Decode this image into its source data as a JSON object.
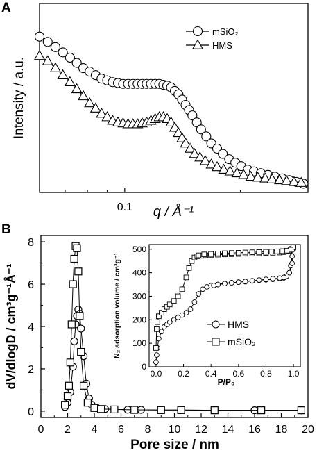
{
  "panels": {
    "a_label": "A",
    "b_label": "B"
  },
  "chart_data": [
    {
      "id": "A",
      "type": "line",
      "xscale": "log",
      "xlabel": "q / Å⁻¹",
      "ylabel": "Intensity / a.u.",
      "xlim": [
        0.06,
        0.3
      ],
      "ylim": [
        0,
        1
      ],
      "x_ticks": [
        0.1
      ],
      "x_tick_labels": [
        "0.1"
      ],
      "legend_position": "top-right",
      "series": [
        {
          "name": "mSiO₂",
          "marker": "circle",
          "x": [
            0.06,
            0.063,
            0.066,
            0.069,
            0.072,
            0.075,
            0.078,
            0.081,
            0.084,
            0.087,
            0.09,
            0.093,
            0.096,
            0.099,
            0.102,
            0.105,
            0.108,
            0.111,
            0.114,
            0.117,
            0.12,
            0.123,
            0.126,
            0.129,
            0.132,
            0.135,
            0.138,
            0.141,
            0.144,
            0.147,
            0.15,
            0.154,
            0.158,
            0.163,
            0.168,
            0.174,
            0.18,
            0.187,
            0.194,
            0.201,
            0.209,
            0.217,
            0.226,
            0.236,
            0.246,
            0.257,
            0.268,
            0.28,
            0.292
          ],
          "values": [
            0.89,
            0.86,
            0.83,
            0.8,
            0.77,
            0.74,
            0.71,
            0.69,
            0.67,
            0.65,
            0.64,
            0.63,
            0.625,
            0.62,
            0.62,
            0.62,
            0.62,
            0.62,
            0.62,
            0.62,
            0.62,
            0.62,
            0.615,
            0.61,
            0.6,
            0.58,
            0.56,
            0.53,
            0.5,
            0.47,
            0.44,
            0.4,
            0.36,
            0.32,
            0.28,
            0.25,
            0.22,
            0.19,
            0.17,
            0.15,
            0.13,
            0.12,
            0.11,
            0.1,
            0.09,
            0.08,
            0.07,
            0.06,
            0.05
          ]
        },
        {
          "name": "HMS",
          "marker": "triangle",
          "x": [
            0.06,
            0.063,
            0.066,
            0.069,
            0.072,
            0.075,
            0.078,
            0.081,
            0.084,
            0.087,
            0.09,
            0.093,
            0.096,
            0.099,
            0.102,
            0.105,
            0.108,
            0.111,
            0.114,
            0.117,
            0.12,
            0.123,
            0.126,
            0.129,
            0.132,
            0.135,
            0.138,
            0.141,
            0.144,
            0.148,
            0.152,
            0.157,
            0.162,
            0.168,
            0.174,
            0.181,
            0.188,
            0.196,
            0.204,
            0.213,
            0.222,
            0.232,
            0.242,
            0.253,
            0.264,
            0.276,
            0.288
          ],
          "values": [
            0.78,
            0.75,
            0.71,
            0.67,
            0.63,
            0.59,
            0.55,
            0.51,
            0.48,
            0.45,
            0.43,
            0.41,
            0.4,
            0.395,
            0.39,
            0.39,
            0.39,
            0.395,
            0.4,
            0.41,
            0.42,
            0.43,
            0.43,
            0.42,
            0.4,
            0.37,
            0.34,
            0.31,
            0.28,
            0.25,
            0.22,
            0.2,
            0.18,
            0.16,
            0.145,
            0.13,
            0.12,
            0.11,
            0.1,
            0.09,
            0.085,
            0.08,
            0.075,
            0.07,
            0.065,
            0.06,
            0.055
          ]
        }
      ]
    },
    {
      "id": "B",
      "type": "line",
      "xlabel": "Pore size / nm",
      "ylabel": "dV/dlogD / cm³g⁻¹Å⁻¹",
      "xlim": [
        0,
        20
      ],
      "ylim": [
        -0.3,
        8.3
      ],
      "x_ticks": [
        0,
        2,
        4,
        6,
        8,
        10,
        12,
        14,
        16,
        18,
        20
      ],
      "y_ticks": [
        0,
        2,
        4,
        6,
        8
      ],
      "legend_position": "inset bottom-right",
      "series": [
        {
          "name": "HMS",
          "marker": "circle",
          "x": [
            1.8,
            2.0,
            2.2,
            2.4,
            2.5,
            2.6,
            2.7,
            2.8,
            2.9,
            3.0,
            3.2,
            3.4,
            3.6,
            3.8,
            4.2,
            4.8,
            5.5,
            6.5,
            7.5,
            9,
            10.5,
            13,
            16,
            19.5
          ],
          "values": [
            0.2,
            0.4,
            0.9,
            2.1,
            3.3,
            4.1,
            4.5,
            4.8,
            4.6,
            3.9,
            2.6,
            1.3,
            0.6,
            0.3,
            0.15,
            0.1,
            0.08,
            0.07,
            0.06,
            0.05,
            0.05,
            0.04,
            0.04,
            0.04
          ]
        },
        {
          "name": "mSiO₂",
          "marker": "square",
          "x": [
            1.8,
            2.0,
            2.1,
            2.2,
            2.3,
            2.4,
            2.5,
            2.6,
            2.7,
            2.8,
            2.9,
            3.0,
            3.2,
            3.5,
            4.0,
            4.5,
            5.5,
            7,
            9,
            10.5,
            13,
            16.5,
            19.5
          ],
          "values": [
            0.3,
            0.7,
            1.2,
            2.3,
            4.1,
            6.0,
            7.2,
            7.8,
            7.7,
            6.6,
            4.5,
            2.8,
            1.2,
            0.4,
            0.15,
            0.1,
            0.08,
            0.06,
            0.05,
            0.05,
            0.04,
            0.04,
            0.04
          ]
        }
      ],
      "inset": {
        "type": "line",
        "xlabel": "P/P₀",
        "ylabel": "N₂ adsorption volume / cm³g⁻¹",
        "xlim": [
          -0.05,
          1.05
        ],
        "ylim": [
          0,
          520
        ],
        "x_ticks": [
          0.0,
          0.2,
          0.4,
          0.6,
          0.8,
          1.0
        ],
        "x_tick_labels": [
          "0.0",
          "0.2",
          "0.4",
          "0.6",
          "0.8",
          "1.0"
        ],
        "y_ticks": [
          0,
          100,
          200,
          300,
          400,
          500
        ],
        "series": [
          {
            "name": "HMS",
            "marker": "circle",
            "x": [
              0.0,
              0.005,
              0.01,
              0.02,
              0.04,
              0.06,
              0.08,
              0.1,
              0.13,
              0.16,
              0.19,
              0.22,
              0.25,
              0.28,
              0.31,
              0.34,
              0.37,
              0.4,
              0.45,
              0.5,
              0.55,
              0.6,
              0.65,
              0.7,
              0.75,
              0.8,
              0.85,
              0.9,
              0.93,
              0.95,
              0.97,
              0.98,
              0.99,
              1.0,
              0.99,
              0.97,
              0.95,
              0.93,
              0.9,
              0.85,
              0.8,
              0.75,
              0.7,
              0.65,
              0.6,
              0.55,
              0.5,
              0.45,
              0.42
            ],
            "values": [
              20,
              50,
              80,
              120,
              150,
              170,
              180,
              190,
              200,
              210,
              220,
              230,
              245,
              275,
              310,
              330,
              340,
              345,
              350,
              355,
              358,
              360,
              362,
              365,
              368,
              370,
              372,
              375,
              378,
              385,
              400,
              430,
              470,
              500,
              440,
              400,
              385,
              380,
              377,
              375,
              372,
              369,
              366,
              363,
              360,
              357,
              354,
              350,
              346
            ]
          },
          {
            "name": "mSiO₂",
            "marker": "square",
            "x": [
              0.0,
              0.005,
              0.01,
              0.02,
              0.04,
              0.06,
              0.08,
              0.1,
              0.13,
              0.16,
              0.19,
              0.22,
              0.24,
              0.26,
              0.28,
              0.3,
              0.33,
              0.36,
              0.4,
              0.45,
              0.5,
              0.55,
              0.6,
              0.65,
              0.7,
              0.75,
              0.8,
              0.85,
              0.9,
              0.93,
              0.95,
              0.97,
              0.98,
              0.99,
              1.0,
              0.98,
              0.95,
              0.92,
              0.88,
              0.84,
              0.8,
              0.75,
              0.7,
              0.65,
              0.6,
              0.55,
              0.5,
              0.45,
              0.4,
              0.35,
              0.31
            ],
            "values": [
              80,
              160,
              190,
              215,
              230,
              245,
              255,
              265,
              280,
              300,
              330,
              380,
              420,
              450,
              465,
              470,
              472,
              474,
              476,
              477,
              478,
              479,
              480,
              481,
              482,
              483,
              484,
              485,
              486,
              488,
              490,
              493,
              497,
              502,
              510,
              498,
              494,
              492,
              491,
              490,
              489,
              488,
              487,
              486,
              485,
              484,
              483,
              482,
              480,
              478,
              474
            ]
          }
        ]
      }
    }
  ]
}
